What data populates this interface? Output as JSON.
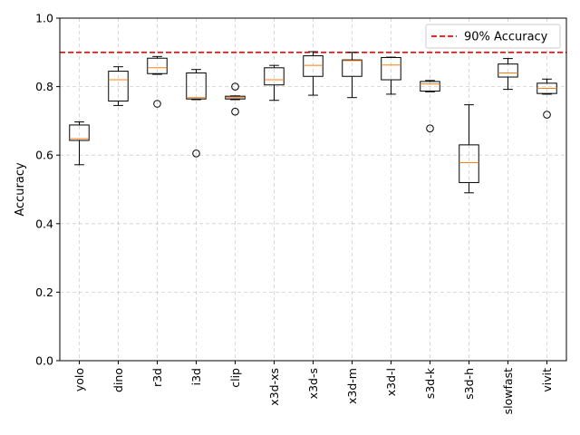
{
  "chart_data": {
    "type": "box",
    "title": "",
    "xlabel": "",
    "ylabel": "Accuracy",
    "ylim": [
      0.0,
      1.0
    ],
    "yticks": [
      "0.0",
      "0.2",
      "0.4",
      "0.6",
      "0.8",
      "1.0"
    ],
    "grid": true,
    "legend_position": "top-right",
    "reference_line": {
      "label": "90% Accuracy",
      "value": 0.9,
      "color": "#ff0000",
      "style": "dashed"
    },
    "box_color": "#000000",
    "median_color": "#ff7f0e",
    "categories": [
      "yolo",
      "dino",
      "r3d",
      "i3d",
      "clip",
      "x3d-xs",
      "x3d-s",
      "x3d-m",
      "x3d-l",
      "s3d-k",
      "s3d-h",
      "slowfast",
      "vivit"
    ],
    "boxes": [
      {
        "whisker_low": 0.572,
        "q1": 0.643,
        "median": 0.648,
        "q3": 0.688,
        "whisker_high": 0.697,
        "outliers": []
      },
      {
        "whisker_low": 0.745,
        "q1": 0.758,
        "median": 0.82,
        "q3": 0.845,
        "whisker_high": 0.858,
        "outliers": []
      },
      {
        "whisker_low": 0.836,
        "q1": 0.838,
        "median": 0.855,
        "q3": 0.883,
        "whisker_high": 0.888,
        "outliers": [
          0.75
        ]
      },
      {
        "whisker_low": 0.762,
        "q1": 0.764,
        "median": 0.768,
        "q3": 0.84,
        "whisker_high": 0.85,
        "outliers": [
          0.605
        ]
      },
      {
        "whisker_low": 0.762,
        "q1": 0.764,
        "median": 0.768,
        "q3": 0.772,
        "whisker_high": 0.773,
        "outliers": [
          0.8,
          0.727
        ]
      },
      {
        "whisker_low": 0.76,
        "q1": 0.805,
        "median": 0.82,
        "q3": 0.855,
        "whisker_high": 0.862,
        "outliers": []
      },
      {
        "whisker_low": 0.775,
        "q1": 0.83,
        "median": 0.862,
        "q3": 0.89,
        "whisker_high": 0.902,
        "outliers": []
      },
      {
        "whisker_low": 0.768,
        "q1": 0.83,
        "median": 0.876,
        "q3": 0.878,
        "whisker_high": 0.9,
        "outliers": []
      },
      {
        "whisker_low": 0.778,
        "q1": 0.82,
        "median": 0.863,
        "q3": 0.885,
        "whisker_high": 0.886,
        "outliers": []
      },
      {
        "whisker_low": 0.785,
        "q1": 0.787,
        "median": 0.808,
        "q3": 0.815,
        "whisker_high": 0.818,
        "outliers": [
          0.678
        ]
      },
      {
        "whisker_low": 0.49,
        "q1": 0.52,
        "median": 0.578,
        "q3": 0.63,
        "whisker_high": 0.747,
        "outliers": []
      },
      {
        "whisker_low": 0.792,
        "q1": 0.828,
        "median": 0.84,
        "q3": 0.866,
        "whisker_high": 0.882,
        "outliers": []
      },
      {
        "whisker_low": 0.778,
        "q1": 0.78,
        "median": 0.795,
        "q3": 0.81,
        "whisker_high": 0.822,
        "outliers": [
          0.718
        ]
      }
    ]
  }
}
